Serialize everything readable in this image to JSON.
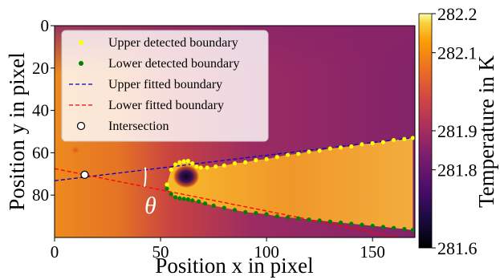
{
  "chart_data": {
    "type": "heatmap",
    "xlabel": "Position x in pixel",
    "ylabel": "Position y in pixel",
    "xlim": [
      0,
      170
    ],
    "ylim": [
      100,
      0
    ],
    "x_ticks": [
      0,
      50,
      100,
      150
    ],
    "y_ticks": [
      0,
      20,
      40,
      60,
      80
    ],
    "colorbar": {
      "label": "Temperature in K",
      "min": 281.6,
      "max": 282.2,
      "ticks": [
        "281.6",
        "281.8",
        "281.9",
        "282.1",
        "282.2"
      ],
      "colormap": "inferno"
    },
    "angle_label": "θ",
    "series": [
      {
        "name": "Upper detected boundary",
        "color": "#ffff00",
        "kind": "markers",
        "x": [
          53,
          55,
          57,
          59,
          61,
          63,
          65,
          67,
          69,
          72,
          76,
          80,
          85,
          90,
          95,
          100,
          105,
          110,
          115,
          120,
          125,
          130,
          135,
          140,
          145,
          150,
          155,
          160,
          165,
          169
        ],
        "y": [
          75,
          68,
          65.5,
          64.5,
          64,
          63.8,
          65,
          66.5,
          67,
          67,
          66.5,
          66,
          65,
          64.5,
          63.5,
          63,
          62,
          61,
          60.5,
          59.5,
          59,
          58,
          57.5,
          57,
          56,
          55.5,
          55,
          54,
          53.5,
          53
        ]
      },
      {
        "name": "Lower detected boundary",
        "color": "#008000",
        "kind": "markers",
        "x": [
          53,
          55,
          57,
          59,
          61,
          63,
          65,
          68,
          71,
          75,
          80,
          85,
          90,
          95,
          100,
          105,
          110,
          115,
          120,
          125,
          130,
          135,
          140,
          145,
          150,
          155,
          160,
          165,
          169
        ],
        "y": [
          77,
          79.5,
          81,
          81.5,
          81.8,
          82,
          82.5,
          83,
          84,
          85,
          86,
          87,
          88,
          88.5,
          89,
          90,
          90.5,
          91,
          91.5,
          92,
          92.5,
          93,
          93.5,
          94,
          94.5,
          95,
          95.5,
          96,
          96.5
        ]
      },
      {
        "name": "Upper fitted boundary",
        "color": "#0000cc",
        "kind": "dashed-line",
        "x": [
          0,
          170
        ],
        "y": [
          73.2,
          52.8
        ]
      },
      {
        "name": "Lower fitted boundary",
        "color": "#ff0000",
        "kind": "dashed-line",
        "x": [
          0,
          170
        ],
        "y": [
          67.5,
          101.5
        ]
      },
      {
        "name": "Intersection",
        "color": "#ffffff",
        "kind": "point",
        "x": [
          14.2
        ],
        "y": [
          70.4
        ]
      }
    ],
    "legend": {
      "position": "top-left"
    }
  }
}
